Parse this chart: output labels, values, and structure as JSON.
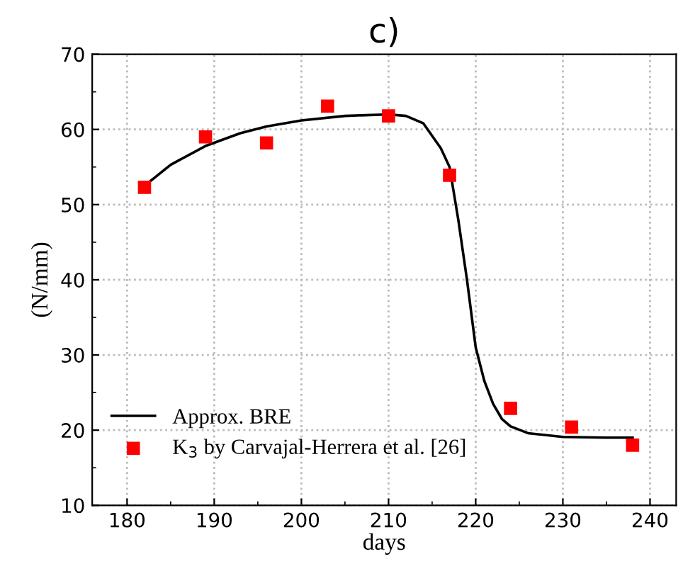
{
  "chart_data": {
    "type": "line",
    "title": "c)",
    "xlabel": "days",
    "ylabel": "(N/mm)",
    "xlim": [
      176,
      243
    ],
    "ylim": [
      10,
      70
    ],
    "xticks": [
      180,
      190,
      200,
      210,
      220,
      230,
      240
    ],
    "yticks": [
      10,
      20,
      30,
      40,
      50,
      60,
      70
    ],
    "grid": true,
    "legend": "bottom left",
    "series": [
      {
        "name": "Approx. BRE",
        "color": "#000000",
        "marker": "none",
        "line_style": "solid",
        "x": [
          182,
          185,
          189,
          193,
          196,
          200,
          205,
          210,
          212,
          214,
          216,
          217,
          218,
          219,
          220,
          221,
          222,
          223,
          224,
          226,
          230,
          235,
          238
        ],
        "values": [
          52.5,
          55.3,
          57.8,
          59.5,
          60.4,
          61.2,
          61.8,
          62,
          61.8,
          60.8,
          57.5,
          55,
          48,
          40,
          31,
          26.5,
          23.5,
          21.5,
          20.5,
          19.6,
          19.1,
          19.0,
          19.0
        ]
      },
      {
        "name": "K$_{3}$ by Carvajal-Herrera et al. [26]",
        "type": "scatter",
        "color": "#ff0000",
        "marker": "square",
        "x": [
          182,
          189,
          196,
          203,
          210,
          217,
          224,
          231,
          238
        ],
        "values": [
          52.3,
          59,
          58.2,
          63.1,
          61.8,
          53.9,
          22.9,
          20.4,
          18
        ]
      }
    ]
  }
}
